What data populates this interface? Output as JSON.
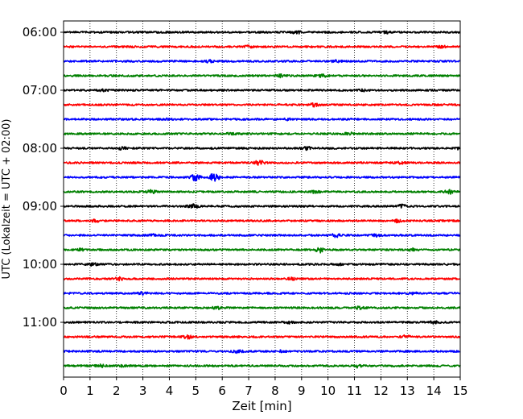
{
  "chart_data": {
    "type": "line",
    "title": "",
    "xlabel": "Zeit  [min]",
    "ylabel": "UTC (Lokalzeit = UTC + 02:00)",
    "xlim": [
      0,
      15
    ],
    "x_ticks": [
      "0",
      "1",
      "2",
      "3",
      "4",
      "5",
      "6",
      "7",
      "8",
      "9",
      "10",
      "11",
      "12",
      "13",
      "14",
      "15"
    ],
    "y_ticks": [
      "06:00",
      "07:00",
      "08:00",
      "09:00",
      "10:00",
      "11:00"
    ],
    "grid": "vertical dotted",
    "legend": "none",
    "trace_colors": [
      "#000000",
      "#ff0000",
      "#0000ff",
      "#008000"
    ],
    "traces": [
      {
        "start": "06:00",
        "color": "#000000",
        "events": [
          {
            "t": 8.8,
            "a": 1.4
          },
          {
            "t": 12.2,
            "a": 1.0
          }
        ]
      },
      {
        "start": "06:15",
        "color": "#ff0000",
        "events": [
          {
            "t": 7.0,
            "a": 1.0
          },
          {
            "t": 14.3,
            "a": 1.1
          }
        ]
      },
      {
        "start": "06:30",
        "color": "#0000ff",
        "events": [
          {
            "t": 5.5,
            "a": 1.2
          },
          {
            "t": 10.3,
            "a": 1.0
          }
        ]
      },
      {
        "start": "06:45",
        "color": "#008000",
        "events": [
          {
            "t": 8.2,
            "a": 2.2
          },
          {
            "t": 9.8,
            "a": 1.6
          }
        ]
      },
      {
        "start": "07:00",
        "color": "#000000",
        "events": [
          {
            "t": 1.5,
            "a": 0.9
          },
          {
            "t": 11.3,
            "a": 0.9
          }
        ]
      },
      {
        "start": "07:15",
        "color": "#ff0000",
        "events": [
          {
            "t": 9.5,
            "a": 1.8
          }
        ]
      },
      {
        "start": "07:30",
        "color": "#0000ff",
        "events": [
          {
            "t": 3.8,
            "a": 0.9
          },
          {
            "t": 8.5,
            "a": 0.9
          }
        ]
      },
      {
        "start": "07:45",
        "color": "#008000",
        "events": [
          {
            "t": 6.3,
            "a": 1.1
          },
          {
            "t": 10.8,
            "a": 1.4
          }
        ]
      },
      {
        "start": "08:00",
        "color": "#000000",
        "events": [
          {
            "t": 2.2,
            "a": 1.2
          },
          {
            "t": 9.2,
            "a": 1.5
          },
          {
            "t": 15.0,
            "a": 1.3
          }
        ]
      },
      {
        "start": "08:15",
        "color": "#ff0000",
        "events": [
          {
            "t": 7.4,
            "a": 2.6
          },
          {
            "t": 12.7,
            "a": 1.0
          }
        ]
      },
      {
        "start": "08:30",
        "color": "#0000ff",
        "events": [
          {
            "t": 5.0,
            "a": 3.8
          },
          {
            "t": 5.7,
            "a": 4.5
          }
        ]
      },
      {
        "start": "08:45",
        "color": "#008000",
        "events": [
          {
            "t": 3.3,
            "a": 1.9
          },
          {
            "t": 9.5,
            "a": 1.2
          },
          {
            "t": 14.6,
            "a": 2.3
          }
        ]
      },
      {
        "start": "09:00",
        "color": "#000000",
        "events": [
          {
            "t": 4.9,
            "a": 2.6
          },
          {
            "t": 12.8,
            "a": 1.6
          }
        ]
      },
      {
        "start": "09:15",
        "color": "#ff0000",
        "events": [
          {
            "t": 1.2,
            "a": 1.0
          },
          {
            "t": 12.6,
            "a": 1.6
          }
        ]
      },
      {
        "start": "09:30",
        "color": "#0000ff",
        "events": [
          {
            "t": 3.4,
            "a": 1.0
          },
          {
            "t": 10.3,
            "a": 1.9
          },
          {
            "t": 11.8,
            "a": 1.2
          }
        ]
      },
      {
        "start": "09:45",
        "color": "#008000",
        "events": [
          {
            "t": 0.7,
            "a": 1.2
          },
          {
            "t": 9.7,
            "a": 2.8
          },
          {
            "t": 13.2,
            "a": 1.2
          }
        ]
      },
      {
        "start": "10:00",
        "color": "#000000",
        "events": [
          {
            "t": 1.1,
            "a": 1.3
          },
          {
            "t": 10.5,
            "a": 1.2
          }
        ]
      },
      {
        "start": "10:15",
        "color": "#ff0000",
        "events": [
          {
            "t": 2.1,
            "a": 1.4
          },
          {
            "t": 8.6,
            "a": 1.1
          }
        ]
      },
      {
        "start": "10:30",
        "color": "#0000ff",
        "events": [
          {
            "t": 3.0,
            "a": 1.3
          },
          {
            "t": 13.2,
            "a": 1.0
          }
        ]
      },
      {
        "start": "10:45",
        "color": "#008000",
        "events": [
          {
            "t": 5.8,
            "a": 1.4
          },
          {
            "t": 11.2,
            "a": 1.2
          }
        ]
      },
      {
        "start": "11:00",
        "color": "#000000",
        "events": [
          {
            "t": 8.5,
            "a": 1.2
          },
          {
            "t": 14.0,
            "a": 1.5
          }
        ]
      },
      {
        "start": "11:15",
        "color": "#ff0000",
        "events": [
          {
            "t": 4.7,
            "a": 1.8
          },
          {
            "t": 12.9,
            "a": 1.8
          }
        ]
      },
      {
        "start": "11:30",
        "color": "#0000ff",
        "events": [
          {
            "t": 6.6,
            "a": 2.0
          },
          {
            "t": 8.2,
            "a": 1.0
          }
        ]
      },
      {
        "start": "11:45",
        "color": "#008000",
        "events": [
          {
            "t": 1.4,
            "a": 1.4
          },
          {
            "t": 2.3,
            "a": 1.3
          },
          {
            "t": 11.1,
            "a": 1.6
          }
        ]
      }
    ]
  }
}
